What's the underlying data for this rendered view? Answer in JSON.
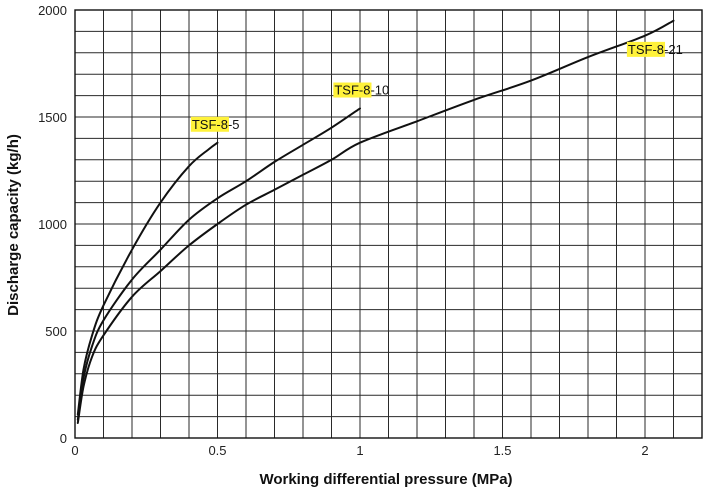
{
  "chart_data": {
    "type": "line",
    "xlabel": "Working differential pressure (MPa)",
    "ylabel": "Discharge capacity (kg/h)",
    "xlim": [
      0,
      2.2
    ],
    "ylim": [
      0,
      2000
    ],
    "x_ticks": [
      {
        "value": 0,
        "label": "0"
      },
      {
        "value": 0.5,
        "label": "0.5"
      },
      {
        "value": 1,
        "label": "1"
      },
      {
        "value": 1.5,
        "label": "1.5"
      },
      {
        "value": 2,
        "label": "2"
      }
    ],
    "y_ticks": [
      {
        "value": 0,
        "label": "0"
      },
      {
        "value": 500,
        "label": "500"
      },
      {
        "value": 1000,
        "label": "1000"
      },
      {
        "value": 1500,
        "label": "1500"
      },
      {
        "value": 2000,
        "label": "2000"
      }
    ],
    "grid": true,
    "grid_step_x": 0.1,
    "grid_step_y": 100,
    "series": [
      {
        "name_highlight": "TSF-8",
        "name_suffix": "-5",
        "label_at": {
          "x": 0.41,
          "y": 1445
        },
        "points": [
          [
            0.01,
            110
          ],
          [
            0.03,
            320
          ],
          [
            0.06,
            480
          ],
          [
            0.1,
            620
          ],
          [
            0.2,
            880
          ],
          [
            0.3,
            1100
          ],
          [
            0.4,
            1270
          ],
          [
            0.47,
            1350
          ],
          [
            0.5,
            1380
          ]
        ]
      },
      {
        "name_highlight": "TSF-8",
        "name_suffix": "-10",
        "label_at": {
          "x": 0.91,
          "y": 1605
        },
        "points": [
          [
            0.01,
            85
          ],
          [
            0.03,
            280
          ],
          [
            0.06,
            430
          ],
          [
            0.1,
            550
          ],
          [
            0.2,
            740
          ],
          [
            0.3,
            880
          ],
          [
            0.4,
            1020
          ],
          [
            0.5,
            1120
          ],
          [
            0.6,
            1200
          ],
          [
            0.7,
            1290
          ],
          [
            0.8,
            1370
          ],
          [
            0.9,
            1450
          ],
          [
            1.0,
            1540
          ]
        ]
      },
      {
        "name_highlight": "TSF-8",
        "name_suffix": "-21",
        "label_at": {
          "x": 1.94,
          "y": 1795
        },
        "points": [
          [
            0.01,
            70
          ],
          [
            0.03,
            240
          ],
          [
            0.06,
            380
          ],
          [
            0.1,
            480
          ],
          [
            0.2,
            660
          ],
          [
            0.3,
            780
          ],
          [
            0.4,
            900
          ],
          [
            0.5,
            1000
          ],
          [
            0.6,
            1090
          ],
          [
            0.7,
            1160
          ],
          [
            0.8,
            1230
          ],
          [
            0.9,
            1300
          ],
          [
            1.0,
            1380
          ],
          [
            1.2,
            1480
          ],
          [
            1.4,
            1580
          ],
          [
            1.6,
            1670
          ],
          [
            1.8,
            1780
          ],
          [
            2.0,
            1880
          ],
          [
            2.1,
            1950
          ]
        ]
      }
    ]
  }
}
